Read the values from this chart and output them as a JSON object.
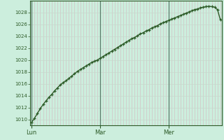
{
  "background_color": "#cceedd",
  "plot_bg_color": "#cceedd",
  "line_color": "#2d5a27",
  "marker": "+",
  "marker_size": 3,
  "line_width": 1.0,
  "ylim": [
    1009,
    1030
  ],
  "yticks": [
    1010,
    1012,
    1014,
    1016,
    1018,
    1020,
    1022,
    1024,
    1026,
    1028
  ],
  "grid_color_minor": "#c0d8cc",
  "grid_color_major": "#a0bfaf",
  "day_labels": [
    "Lun",
    "Mar",
    "Mer"
  ],
  "day_positions": [
    0,
    24,
    48
  ],
  "xlim": [
    -0.5,
    66.5
  ],
  "x_values": [
    0,
    1,
    2,
    3,
    4,
    5,
    6,
    7,
    8,
    9,
    10,
    11,
    12,
    13,
    14,
    15,
    16,
    17,
    18,
    19,
    20,
    21,
    22,
    23,
    24,
    25,
    26,
    27,
    28,
    29,
    30,
    31,
    32,
    33,
    34,
    35,
    36,
    37,
    38,
    39,
    40,
    41,
    42,
    43,
    44,
    45,
    46,
    47,
    48,
    49,
    50,
    51,
    52,
    53,
    54,
    55,
    56,
    57,
    58,
    59,
    60,
    61,
    62,
    63,
    64,
    65,
    66
  ],
  "y_values": [
    1009.5,
    1010.2,
    1011.0,
    1011.8,
    1012.5,
    1013.1,
    1013.7,
    1014.2,
    1014.8,
    1015.3,
    1015.8,
    1016.2,
    1016.5,
    1016.9,
    1017.3,
    1017.7,
    1018.1,
    1018.4,
    1018.7,
    1019.0,
    1019.3,
    1019.6,
    1019.8,
    1020.0,
    1020.3,
    1020.6,
    1020.9,
    1021.2,
    1021.5,
    1021.8,
    1022.1,
    1022.4,
    1022.7,
    1023.0,
    1023.3,
    1023.6,
    1023.8,
    1024.1,
    1024.4,
    1024.6,
    1024.9,
    1025.1,
    1025.4,
    1025.6,
    1025.8,
    1026.1,
    1026.3,
    1026.5,
    1026.7,
    1026.9,
    1027.1,
    1027.3,
    1027.5,
    1027.7,
    1027.9,
    1028.1,
    1028.3,
    1028.5,
    1028.6,
    1028.8,
    1028.9,
    1029.0,
    1029.05,
    1029.0,
    1028.9,
    1028.5,
    1026.8
  ]
}
